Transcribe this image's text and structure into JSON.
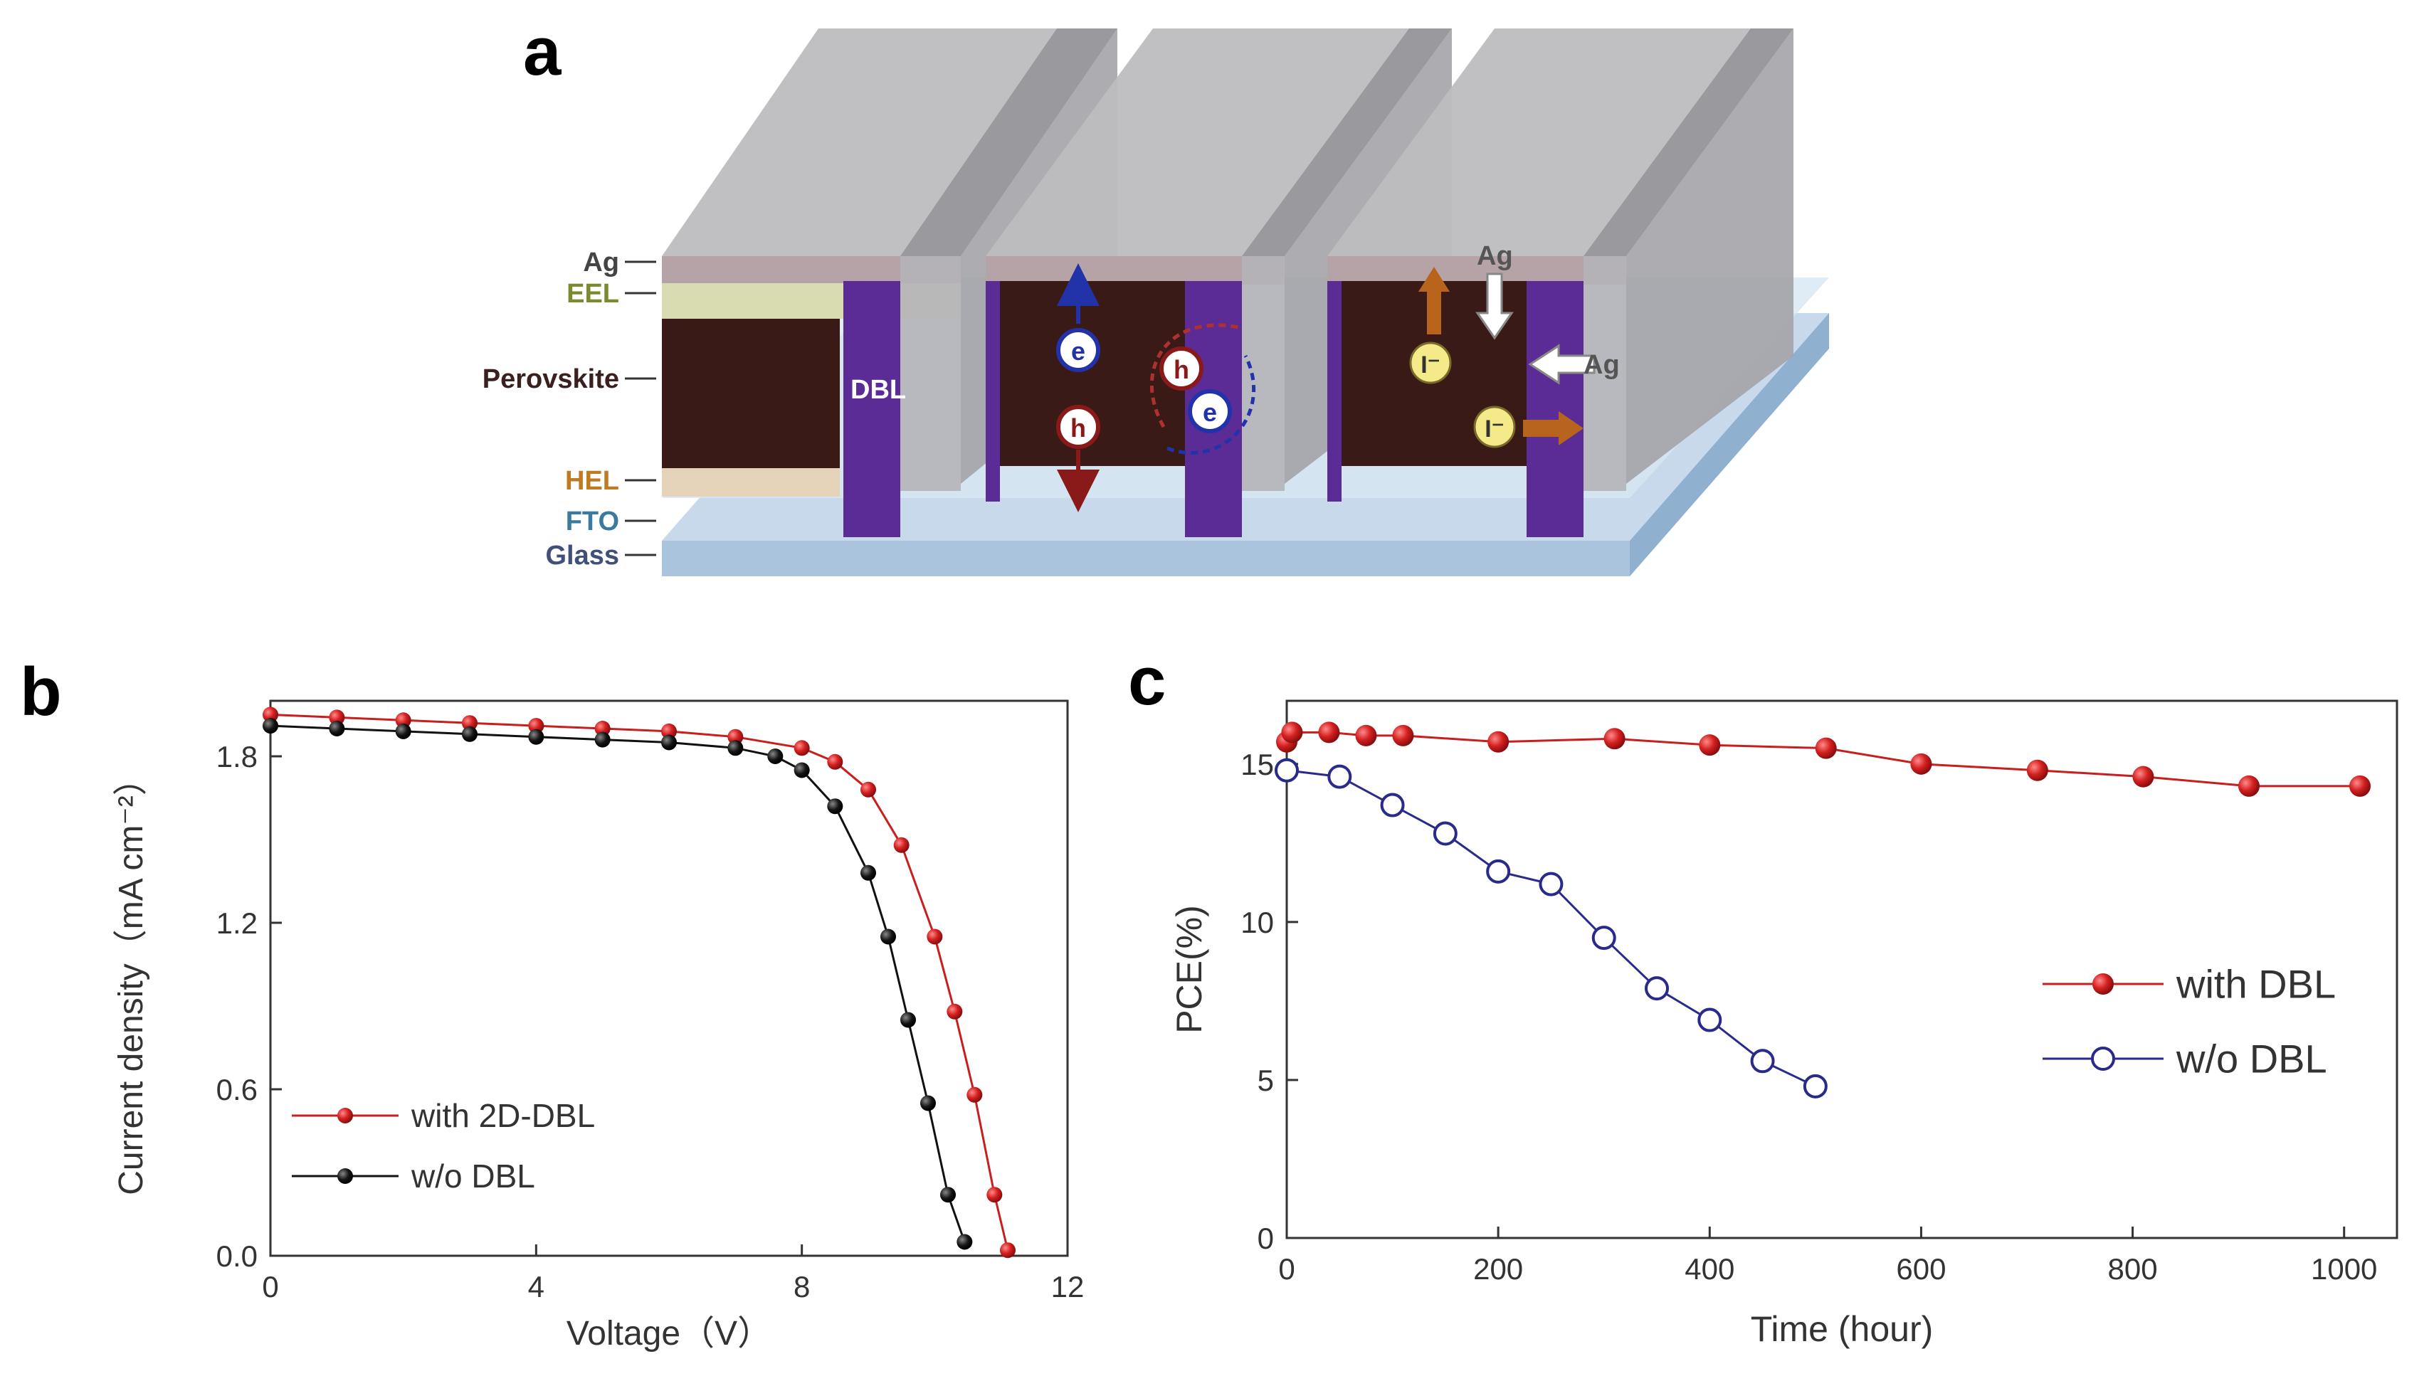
{
  "figure": {
    "panel_a": {
      "letter": "a",
      "layers": [
        {
          "label": "Ag",
          "color": "#444444"
        },
        {
          "label": "EEL",
          "color": "#7a8a2e"
        },
        {
          "label": "Perovskite",
          "color": "#3b2020"
        },
        {
          "label": "HEL",
          "color": "#c07a20"
        },
        {
          "label": "FTO",
          "color": "#3a7aa0"
        },
        {
          "label": "Glass",
          "color": "#40507a"
        }
      ],
      "dbl_label": "DBL",
      "carriers": {
        "electron": "e",
        "hole": "h",
        "iodide": "I⁻",
        "silver": "Ag"
      }
    },
    "panel_b": {
      "letter": "b"
    },
    "panel_c": {
      "letter": "c"
    }
  },
  "chart_data": [
    {
      "type": "line",
      "panel": "b",
      "xlabel": "Voltage（V）",
      "ylabel": "Current density（mA cm⁻²）",
      "xlim": [
        0,
        12
      ],
      "ylim": [
        0,
        2.0
      ],
      "xticks": [
        "0",
        "4",
        "8",
        "12"
      ],
      "yticks": [
        "0.0",
        "0.6",
        "1.2",
        "1.8"
      ],
      "legend_position": "bottom-left",
      "series": [
        {
          "name": "with 2D-DBL",
          "color": "#c81e1e",
          "x": [
            0,
            1,
            2,
            3,
            4,
            5,
            6,
            7,
            8,
            8.5,
            9,
            9.5,
            10,
            10.3,
            10.6,
            10.9,
            11.1
          ],
          "y": [
            1.95,
            1.94,
            1.93,
            1.92,
            1.91,
            1.9,
            1.89,
            1.87,
            1.83,
            1.78,
            1.68,
            1.48,
            1.15,
            0.88,
            0.58,
            0.22,
            0.02
          ]
        },
        {
          "name": "w/o DBL",
          "color": "#111111",
          "x": [
            0,
            1,
            2,
            3,
            4,
            5,
            6,
            7,
            7.6,
            8.0,
            8.5,
            9.0,
            9.3,
            9.6,
            9.9,
            10.2,
            10.45
          ],
          "y": [
            1.91,
            1.9,
            1.89,
            1.88,
            1.87,
            1.86,
            1.85,
            1.83,
            1.8,
            1.75,
            1.62,
            1.38,
            1.15,
            0.85,
            0.55,
            0.22,
            0.05
          ]
        }
      ]
    },
    {
      "type": "line",
      "panel": "c",
      "xlabel": "Time (hour)",
      "ylabel": "PCE(%)",
      "xlim": [
        0,
        1050
      ],
      "ylim": [
        0,
        17
      ],
      "xticks": [
        "0",
        "200",
        "400",
        "600",
        "800",
        "1000"
      ],
      "yticks": [
        "0",
        "5",
        "10",
        "15"
      ],
      "legend_position": "center-right",
      "series": [
        {
          "name": "with DBL",
          "color": "#c81e1e",
          "x": [
            0,
            5,
            40,
            75,
            110,
            200,
            310,
            400,
            510,
            600,
            710,
            810,
            910,
            1015
          ],
          "y": [
            15.7,
            16.0,
            16.0,
            15.9,
            15.9,
            15.7,
            15.8,
            15.6,
            15.5,
            15.0,
            14.8,
            14.6,
            14.3,
            14.3
          ]
        },
        {
          "name": "w/o DBL",
          "color": "#2a2a8a",
          "x": [
            0,
            50,
            100,
            150,
            200,
            250,
            300,
            350,
            400,
            450,
            500
          ],
          "y": [
            14.8,
            14.6,
            13.7,
            12.8,
            11.6,
            11.2,
            9.5,
            7.9,
            6.9,
            5.6,
            4.8
          ]
        }
      ]
    }
  ]
}
